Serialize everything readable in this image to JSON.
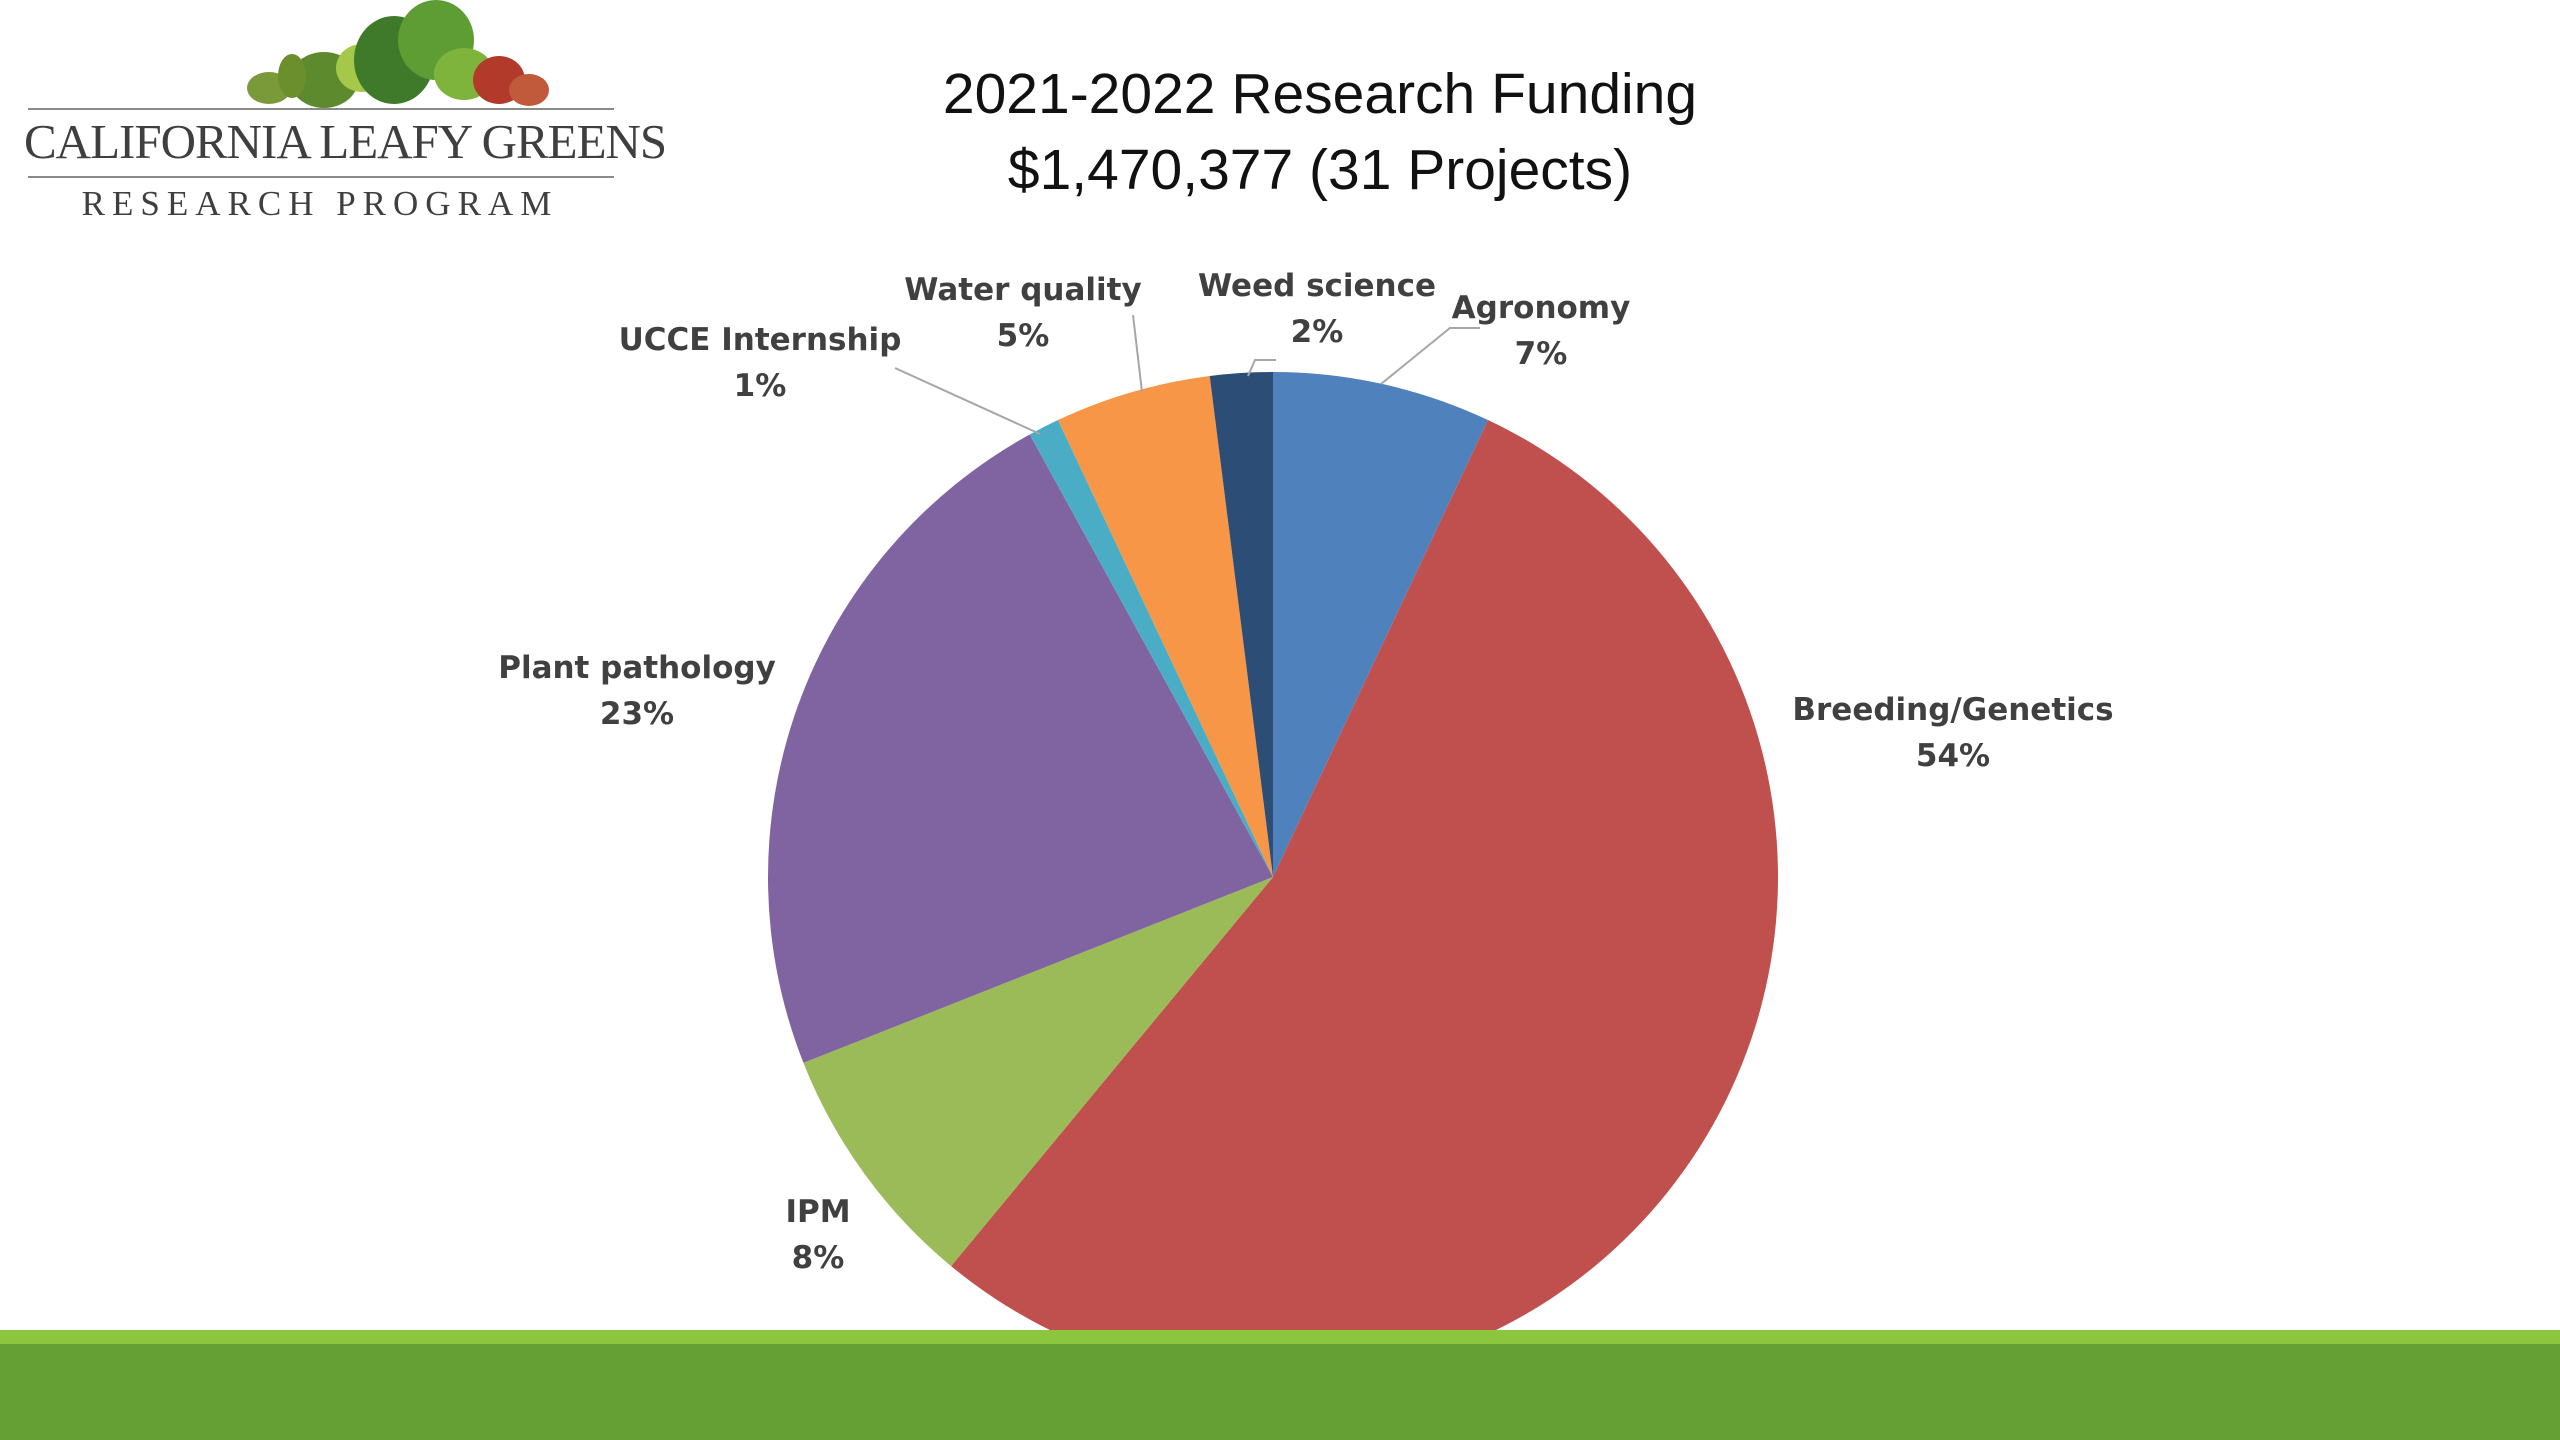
{
  "logo": {
    "name": "CALIFORNIA LEAFY GREENS",
    "subtitle": "RESEARCH PROGRAM"
  },
  "title": {
    "line1": "2021-2022 Research Funding",
    "line2": "$1,470,377 (31 Projects)"
  },
  "chart_data": {
    "type": "pie",
    "title": "2021-2022 Research Funding",
    "subtitle": "$1,470,377 (31 Projects)",
    "start_angle_deg": 0,
    "direction": "clockwise",
    "slices": [
      {
        "label": "Agronomy",
        "value": 7,
        "pct_label": "7%",
        "color": "#4f81bd"
      },
      {
        "label": "Breeding/Genetics",
        "value": 54,
        "pct_label": "54%",
        "color": "#c0504d"
      },
      {
        "label": "IPM",
        "value": 8,
        "pct_label": "8%",
        "color": "#9bbb59"
      },
      {
        "label": "Plant pathology",
        "value": 23,
        "pct_label": "23%",
        "color": "#8064a2"
      },
      {
        "label": "UCCE Internship",
        "value": 1,
        "pct_label": "1%",
        "color": "#4bacc6"
      },
      {
        "label": "Water quality",
        "value": 5,
        "pct_label": "5%",
        "color": "#f79646"
      },
      {
        "label": "Weed science",
        "value": 2,
        "pct_label": "2%",
        "color": "#2c4d75"
      }
    ]
  },
  "footer": {
    "band_colors": [
      "#8cc63f",
      "#64a034"
    ]
  }
}
